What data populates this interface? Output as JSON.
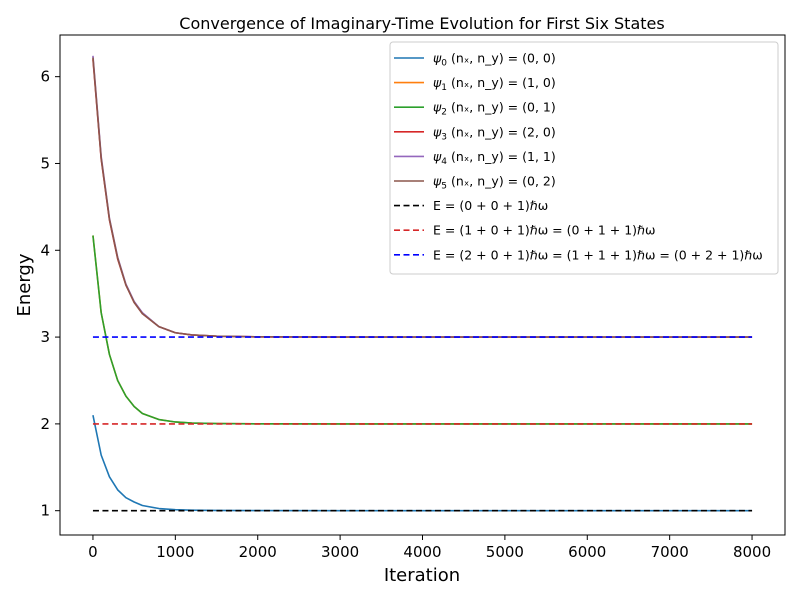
{
  "chart_data": {
    "type": "line",
    "title": "Convergence of Imaginary-Time Evolution for First Six States",
    "xlabel": "Iteration",
    "ylabel": "Energy",
    "xlim": [
      -400,
      8400
    ],
    "ylim": [
      0.72,
      6.48
    ],
    "xticks": [
      0,
      1000,
      2000,
      3000,
      4000,
      5000,
      6000,
      7000,
      8000
    ],
    "yticks": [
      1,
      2,
      3,
      4,
      5,
      6
    ],
    "grid": false,
    "legend_position": "top-right",
    "series": [
      {
        "name_main": "ψ",
        "name_sub": "0",
        "name_rest": " (nₓ, n_y) = (0, 0)",
        "color": "#1f77b4",
        "dash": "solid",
        "x": [
          0,
          100,
          200,
          300,
          400,
          500,
          600,
          800,
          1000,
          1200,
          1500,
          2000,
          3000,
          4000,
          5000,
          6000,
          7000,
          8000
        ],
        "y": [
          2.1,
          1.64,
          1.39,
          1.24,
          1.15,
          1.1,
          1.06,
          1.025,
          1.012,
          1.006,
          1.003,
          1.001,
          1.0,
          1.0,
          1.0,
          1.0,
          1.0,
          1.0
        ]
      },
      {
        "name_main": "ψ",
        "name_sub": "1",
        "name_rest": " (nₓ, n_y) = (1, 0)",
        "color": "#ff7f0e",
        "dash": "solid",
        "x": [
          0,
          100,
          200,
          300,
          400,
          500,
          600,
          800,
          1000,
          1200,
          1500,
          2000,
          3000,
          4000,
          5000,
          6000,
          7000,
          8000
        ],
        "y": [
          4.17,
          3.28,
          2.8,
          2.5,
          2.32,
          2.2,
          2.12,
          2.05,
          2.022,
          2.01,
          2.004,
          2.001,
          2.0,
          2.0,
          2.0,
          2.0,
          2.0,
          2.0
        ]
      },
      {
        "name_main": "ψ",
        "name_sub": "2",
        "name_rest": " (nₓ, n_y) = (0, 1)",
        "color": "#2ca02c",
        "dash": "solid",
        "x": [
          0,
          100,
          200,
          300,
          400,
          500,
          600,
          800,
          1000,
          1200,
          1500,
          2000,
          3000,
          4000,
          5000,
          6000,
          7000,
          8000
        ],
        "y": [
          4.17,
          3.28,
          2.8,
          2.5,
          2.32,
          2.2,
          2.12,
          2.05,
          2.022,
          2.01,
          2.004,
          2.001,
          2.0,
          2.0,
          2.0,
          2.0,
          2.0,
          2.0
        ]
      },
      {
        "name_main": "ψ",
        "name_sub": "3",
        "name_rest": " (nₓ, n_y) = (2, 0)",
        "color": "#d62728",
        "dash": "solid",
        "x": [
          0,
          100,
          200,
          300,
          400,
          500,
          600,
          800,
          1000,
          1200,
          1500,
          2000,
          3000,
          4000,
          5000,
          6000,
          7000,
          8000
        ],
        "y": [
          6.2,
          5.05,
          4.35,
          3.9,
          3.6,
          3.4,
          3.27,
          3.12,
          3.05,
          3.025,
          3.01,
          3.003,
          3.0,
          3.0,
          3.0,
          3.0,
          3.0,
          3.0
        ]
      },
      {
        "name_main": "ψ",
        "name_sub": "4",
        "name_rest": " (nₓ, n_y) = (1, 1)",
        "color": "#9467bd",
        "dash": "solid",
        "x": [
          0,
          100,
          200,
          300,
          400,
          500,
          600,
          800,
          1000,
          1200,
          1500,
          2000,
          3000,
          4000,
          5000,
          6000,
          7000,
          8000
        ],
        "y": [
          6.24,
          5.08,
          4.37,
          3.92,
          3.61,
          3.41,
          3.28,
          3.12,
          3.05,
          3.025,
          3.01,
          3.003,
          3.0,
          3.0,
          3.0,
          3.0,
          3.0,
          3.0
        ]
      },
      {
        "name_main": "ψ",
        "name_sub": "5",
        "name_rest": " (nₓ, n_y) = (0, 2)",
        "color": "#8c564b",
        "dash": "solid",
        "x": [
          0,
          100,
          200,
          300,
          400,
          500,
          600,
          800,
          1000,
          1200,
          1500,
          2000,
          3000,
          4000,
          5000,
          6000,
          7000,
          8000
        ],
        "y": [
          6.22,
          5.06,
          4.36,
          3.91,
          3.6,
          3.4,
          3.27,
          3.12,
          3.05,
          3.025,
          3.01,
          3.003,
          3.0,
          3.0,
          3.0,
          3.0,
          3.0,
          3.0
        ]
      },
      {
        "name_main": "E = (0 + 0 + 1)ℏω",
        "name_sub": "",
        "name_rest": "",
        "color": "#000000",
        "dash": "dashed",
        "x": [
          0,
          8000
        ],
        "y": [
          1,
          1
        ]
      },
      {
        "name_main": "E = (1 + 0 + 1)ℏω = (0 + 1 + 1)ℏω",
        "name_sub": "",
        "name_rest": "",
        "color": "#d62728",
        "dash": "dashed",
        "x": [
          0,
          8000
        ],
        "y": [
          2,
          2
        ]
      },
      {
        "name_main": "E = (2 + 0 + 1)ℏω = (1 + 1 + 1)ℏω = (0 + 2 + 1)ℏω",
        "name_sub": "",
        "name_rest": "",
        "color": "#0000ff",
        "dash": "dashed",
        "x": [
          0,
          8000
        ],
        "y": [
          3,
          3
        ]
      }
    ]
  }
}
